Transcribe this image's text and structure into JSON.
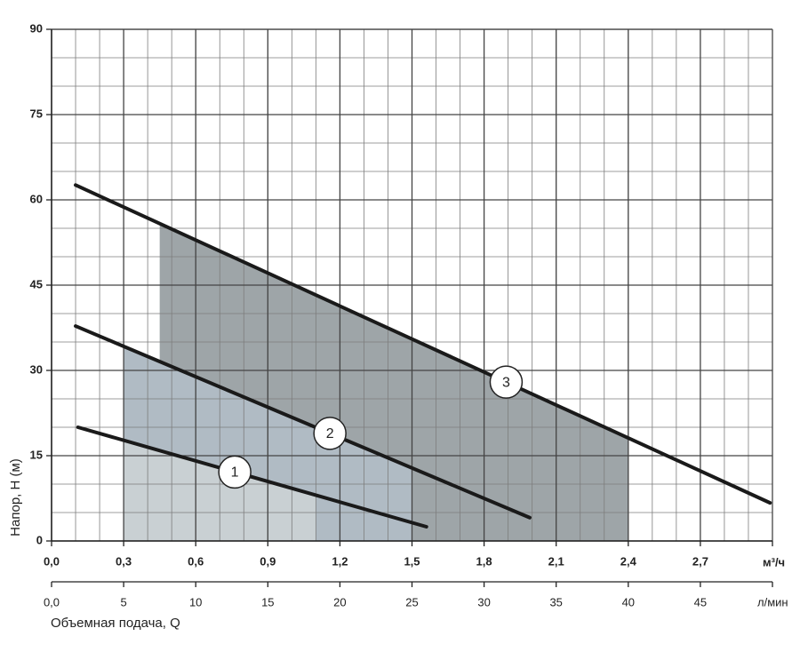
{
  "chart_data": {
    "type": "line",
    "y_label": "Напор, Н (м)",
    "x_label": "Объемная подача, Q",
    "x_unit": "м³/ч",
    "x2_unit": "л/мин",
    "xlim": [
      0,
      3
    ],
    "xticks": [
      {
        "value": 0,
        "label": "0,0"
      },
      {
        "value": 0.3,
        "label": "0,3"
      },
      {
        "value": 0.6,
        "label": "0,6"
      },
      {
        "value": 0.9,
        "label": "0,9"
      },
      {
        "value": 1.2,
        "label": "1,2"
      },
      {
        "value": 1.5,
        "label": "1,5"
      },
      {
        "value": 1.8,
        "label": "1,8"
      },
      {
        "value": 2.1,
        "label": "2,1"
      },
      {
        "value": 2.4,
        "label": "2,4"
      },
      {
        "value": 2.7,
        "label": "2,7"
      }
    ],
    "ylim": [
      0,
      90
    ],
    "yticks": [
      0,
      15,
      30,
      45,
      60,
      75,
      90
    ],
    "x2lim": [
      0,
      50
    ],
    "x2ticks": [
      {
        "value": 0,
        "label": "0,0"
      },
      5,
      10,
      15,
      20,
      25,
      30,
      35,
      40,
      45
    ],
    "grid": true,
    "series": [
      {
        "name": "1",
        "color": "#1a1a1a",
        "x": [
          0.11,
          1.56
        ],
        "values": [
          20,
          2.5
        ],
        "range": [
          0.3,
          1.1
        ],
        "range_color": "#c9d0d3"
      },
      {
        "name": "2",
        "color": "#1a1a1a",
        "x": [
          0.1,
          1.99
        ],
        "values": [
          37.8,
          4.1
        ],
        "range": [
          0.3,
          1.5
        ],
        "range_color": "#b0bbc4"
      },
      {
        "name": "3",
        "color": "#1a1a1a",
        "x": [
          0.1,
          2.99
        ],
        "values": [
          62.6,
          6.7
        ],
        "range": [
          0.45,
          2.4
        ],
        "range_color": "#9ea5a8"
      }
    ]
  }
}
